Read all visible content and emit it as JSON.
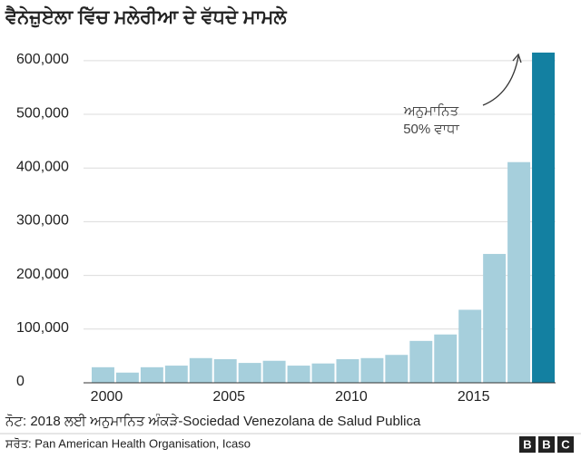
{
  "chart_data": {
    "type": "bar",
    "title": "ਵੈਨੇਜ਼ੁਏਲਾ ਵਿੱਚ ਮਲੇਰੀਆ ਦੇ ਵੱਧਦੇ ਮਾਮਲੇ",
    "categories": [
      "2000",
      null,
      null,
      null,
      null,
      "2005",
      null,
      null,
      null,
      null,
      "2010",
      null,
      null,
      null,
      null,
      "2015",
      null,
      null,
      null
    ],
    "values": [
      29000,
      19000,
      29000,
      32000,
      46000,
      44000,
      37000,
      41000,
      32000,
      36000,
      44000,
      46000,
      52000,
      78000,
      90000,
      136000,
      240000,
      411000,
      615000
    ],
    "colors": [
      "#a6cfdc",
      "#a6cfdc",
      "#a6cfdc",
      "#a6cfdc",
      "#a6cfdc",
      "#a6cfdc",
      "#a6cfdc",
      "#a6cfdc",
      "#a6cfdc",
      "#a6cfdc",
      "#a6cfdc",
      "#a6cfdc",
      "#a6cfdc",
      "#a6cfdc",
      "#a6cfdc",
      "#a6cfdc",
      "#a6cfdc",
      "#a6cfdc",
      "#1380a1"
    ],
    "ylim": [
      0,
      620000
    ],
    "yticks": [
      {
        "value": 0,
        "label": "0"
      },
      {
        "value": 100000,
        "label": "100,000"
      },
      {
        "value": 200000,
        "label": "200,000"
      },
      {
        "value": 300000,
        "label": "300,000"
      },
      {
        "value": 400000,
        "label": "400,000"
      },
      {
        "value": 500000,
        "label": "500,000"
      },
      {
        "value": 600000,
        "label": "600,000"
      }
    ],
    "grid": true,
    "annotation": [
      "ਅਨੁਮਾਨਿਤ",
      "50% ਵਾਧਾ"
    ],
    "note": "ਨੋਟ: 2018 ਲਈ ਅਨੁਮਾਨਿਤ ਅੰਕੜੇ-Sociedad Venezolana de Salud Publica",
    "source": "ਸਰੋਤ: Pan American Health Organisation, Icaso",
    "logo": [
      "B",
      "B",
      "C"
    ]
  }
}
